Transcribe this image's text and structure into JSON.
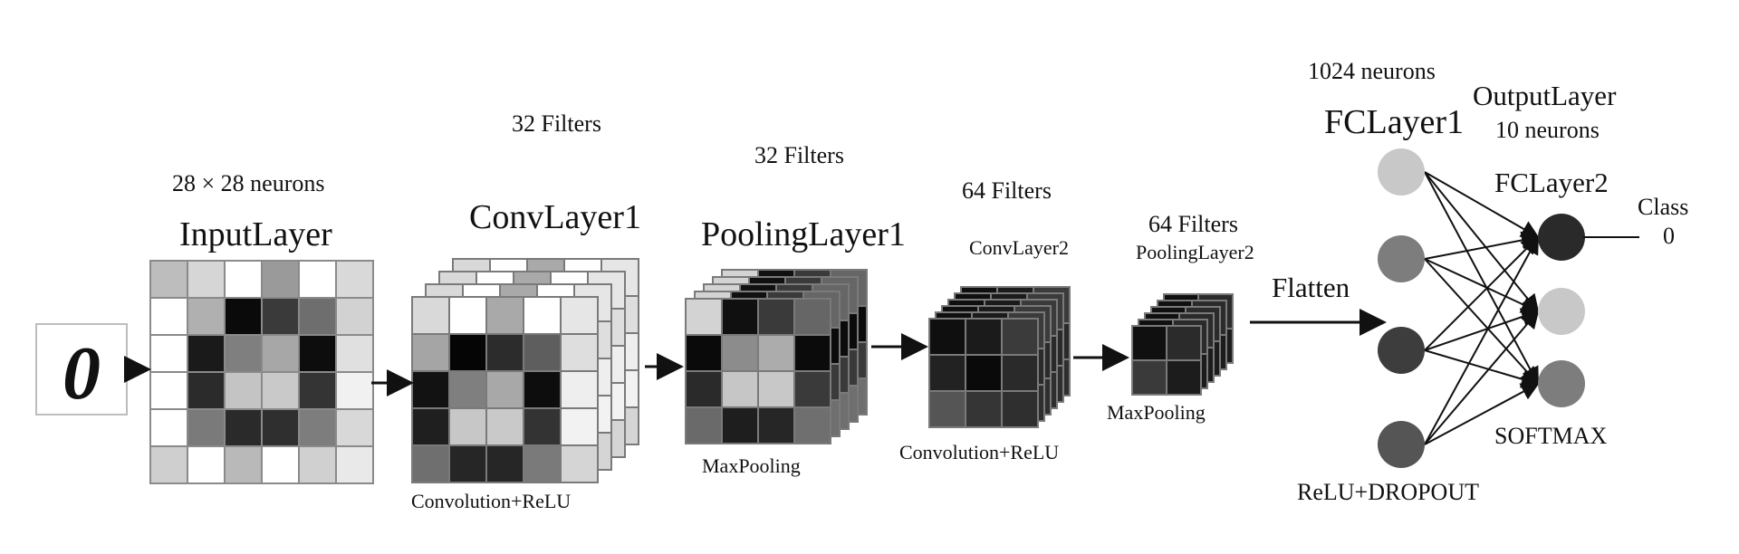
{
  "colors": {
    "line": "#111111",
    "grid_stroke": "#7a7a7a",
    "neuron_light": "#c8c8c8",
    "neuron_mid": "#7d7d7d",
    "neuron_dark": "#3d3d3d",
    "neuron_darker": "#2a2a2a"
  },
  "input_image": {
    "digit": "0"
  },
  "input_layer": {
    "title": "InputLayer",
    "size_label": "28 × 28 neurons",
    "grid": [
      [
        "#bdbdbd",
        "#d6d6d6",
        "#ffffff",
        "#9a9a9a",
        "#ffffff",
        "#d9d9d9"
      ],
      [
        "#ffffff",
        "#b0b0b0",
        "#0a0a0a",
        "#3a3a3a",
        "#6e6e6e",
        "#d2d2d2"
      ],
      [
        "#ffffff",
        "#1a1a1a",
        "#7f7f7f",
        "#a7a7a7",
        "#0d0d0d",
        "#e0e0e0"
      ],
      [
        "#ffffff",
        "#2b2b2b",
        "#c4c4c4",
        "#c9c9c9",
        "#343434",
        "#f1f1f1"
      ],
      [
        "#ffffff",
        "#7a7a7a",
        "#2a2a2a",
        "#2f2f2f",
        "#7d7d7d",
        "#d8d8d8"
      ],
      [
        "#cfcfcf",
        "#ffffff",
        "#b9b9b9",
        "#ffffff",
        "#d0d0d0",
        "#e9e9e9"
      ]
    ]
  },
  "conv_layer1": {
    "title": "ConvLayer1",
    "filters_label": "32 Filters",
    "op_label": "Convolution+ReLU",
    "grid": [
      [
        "#d9d9d9",
        "#ffffff",
        "#a9a9a9",
        "#ffffff",
        "#e6e6e6"
      ],
      [
        "#a5a5a5",
        "#050505",
        "#2c2c2c",
        "#5e5e5e",
        "#dedede"
      ],
      [
        "#121212",
        "#7f7f7f",
        "#a8a8a8",
        "#0d0d0d",
        "#eeeeee"
      ],
      [
        "#1f1f1f",
        "#c7c7c7",
        "#c9c9c9",
        "#333333",
        "#f2f2f2"
      ],
      [
        "#6f6f6f",
        "#262626",
        "#262626",
        "#7a7a7a",
        "#d5d5d5"
      ]
    ]
  },
  "pooling_layer1": {
    "title": "PoolingLayer1",
    "filters_label": "32 Filters",
    "op_label": "MaxPooling",
    "grid": [
      [
        "#d3d3d3",
        "#101010",
        "#3a3a3a",
        "#666666"
      ],
      [
        "#0a0a0a",
        "#8c8c8c",
        "#acacac",
        "#0b0b0b"
      ],
      [
        "#2a2a2a",
        "#c6c6c6",
        "#c8c8c8",
        "#3a3a3a"
      ],
      [
        "#6a6a6a",
        "#1e1e1e",
        "#262626",
        "#6f6f6f"
      ]
    ]
  },
  "conv_layer2": {
    "title": "ConvLayer2",
    "filters_label": "64 Filters",
    "op_label": "Convolution+ReLU",
    "grid": [
      [
        "#0f0f0f",
        "#1b1b1b",
        "#3b3b3b"
      ],
      [
        "#222222",
        "#0a0a0a",
        "#2a2a2a"
      ],
      [
        "#555555",
        "#353535",
        "#2f2f2f"
      ]
    ]
  },
  "pooling_layer2": {
    "title": "PoolingLayer2",
    "filters_label": "64 Filters",
    "op_label": "MaxPooling",
    "grid": [
      [
        "#101010",
        "#2b2b2b"
      ],
      [
        "#3a3a3a",
        "#1c1c1c"
      ]
    ]
  },
  "flatten": {
    "label": "Flatten"
  },
  "fc_layer1": {
    "title": "FCLayer1",
    "size_label": "1024 neurons",
    "op_label": "ReLU+DROPOUT",
    "neurons": [
      "#c8c8c8",
      "#7d7d7d",
      "#3d3d3d",
      "#555555"
    ]
  },
  "fc_layer2": {
    "title": "FCLayer2",
    "output_title": "OutputLayer",
    "size_label": "10 neurons",
    "op_label": "SOFTMAX",
    "neurons": [
      "#2a2a2a",
      "#c8c8c8",
      "#7d7d7d"
    ]
  },
  "output": {
    "class_label": "Class",
    "class_value": "0"
  }
}
